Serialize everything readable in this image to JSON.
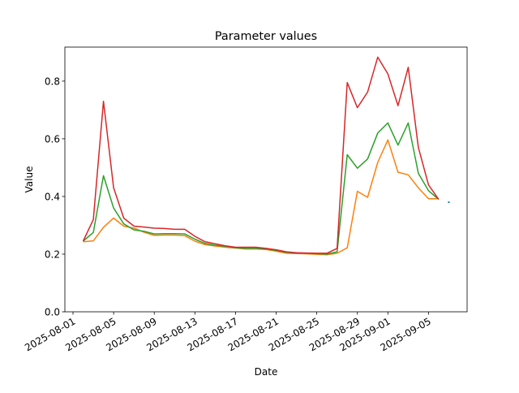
{
  "chart_data": {
    "type": "line",
    "title": "Parameter values",
    "xlabel": "Date",
    "ylabel": "Value",
    "xlim": [
      "2025-07-31",
      "2025-09-08"
    ],
    "ylim": [
      0,
      0.918
    ],
    "grid": false,
    "x_ticks": [
      "2025-08-01",
      "2025-08-05",
      "2025-08-09",
      "2025-08-13",
      "2025-08-17",
      "2025-08-21",
      "2025-08-25",
      "2025-08-29",
      "2025-09-01",
      "2025-09-05"
    ],
    "y_ticks": [
      "0.0",
      "0.2",
      "0.4",
      "0.6",
      "0.8"
    ],
    "x_start": "2025-08-02",
    "series": [
      {
        "name": "blue",
        "color": "#1f77b4",
        "marker_only": true,
        "x": [
          "2025-09-07"
        ],
        "values": [
          0.38
        ]
      },
      {
        "name": "orange",
        "color": "#ff7f0e",
        "values": [
          0.243,
          0.246,
          0.293,
          0.325,
          0.297,
          0.29,
          0.276,
          0.265,
          0.266,
          0.266,
          0.264,
          0.245,
          0.233,
          0.228,
          0.224,
          0.221,
          0.218,
          0.218,
          0.216,
          0.21,
          0.203,
          0.202,
          0.201,
          0.199,
          0.198,
          0.203,
          0.222,
          0.418,
          0.397,
          0.518,
          0.596,
          0.484,
          0.475,
          0.43,
          0.392,
          0.392
        ]
      },
      {
        "name": "green",
        "color": "#2ca02c",
        "values": [
          0.245,
          0.275,
          0.472,
          0.36,
          0.305,
          0.284,
          0.279,
          0.27,
          0.271,
          0.271,
          0.27,
          0.252,
          0.237,
          0.231,
          0.227,
          0.222,
          0.22,
          0.22,
          0.218,
          0.213,
          0.206,
          0.203,
          0.203,
          0.202,
          0.2,
          0.208,
          0.545,
          0.498,
          0.53,
          0.62,
          0.655,
          0.578,
          0.655,
          0.48,
          0.42,
          0.39
        ]
      },
      {
        "name": "red",
        "color": "#d62728",
        "values": [
          0.245,
          0.32,
          0.73,
          0.43,
          0.325,
          0.297,
          0.294,
          0.29,
          0.289,
          0.286,
          0.286,
          0.262,
          0.243,
          0.236,
          0.229,
          0.224,
          0.224,
          0.224,
          0.22,
          0.215,
          0.208,
          0.205,
          0.204,
          0.203,
          0.203,
          0.22,
          0.795,
          0.708,
          0.762,
          0.883,
          0.825,
          0.715,
          0.848,
          0.57,
          0.44,
          0.39
        ]
      }
    ]
  }
}
